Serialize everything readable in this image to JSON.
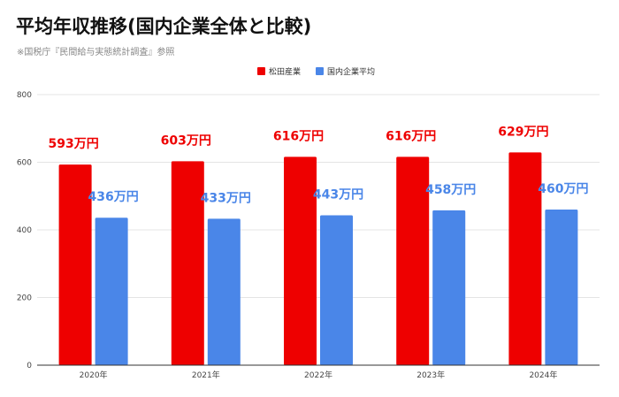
{
  "title": "平均年収推移(国内企業全体と比較)",
  "subtitle": "※国税庁『民間給与実態統計調査』参照",
  "colors": {
    "series1": "#ee0000",
    "series2": "#4a86e8",
    "grid": "#e4e4e4",
    "axis": "#333333"
  },
  "chart_data": {
    "type": "bar",
    "categories": [
      "2020年",
      "2021年",
      "2022年",
      "2023年",
      "2024年"
    ],
    "series": [
      {
        "name": "松田産業",
        "values": [
          593,
          603,
          616,
          616,
          629
        ],
        "labels": [
          "593万円",
          "603万円",
          "616万円",
          "616万円",
          "629万円"
        ]
      },
      {
        "name": "国内企業平均",
        "values": [
          436,
          433,
          443,
          458,
          460
        ],
        "labels": [
          "436万円",
          "433万円",
          "443万円",
          "458万円",
          "460万円"
        ]
      }
    ],
    "ylim": [
      0,
      800
    ],
    "yticks": [
      "0",
      "200",
      "400",
      "600",
      "800"
    ],
    "grid": true,
    "legend_position": "top-center"
  }
}
